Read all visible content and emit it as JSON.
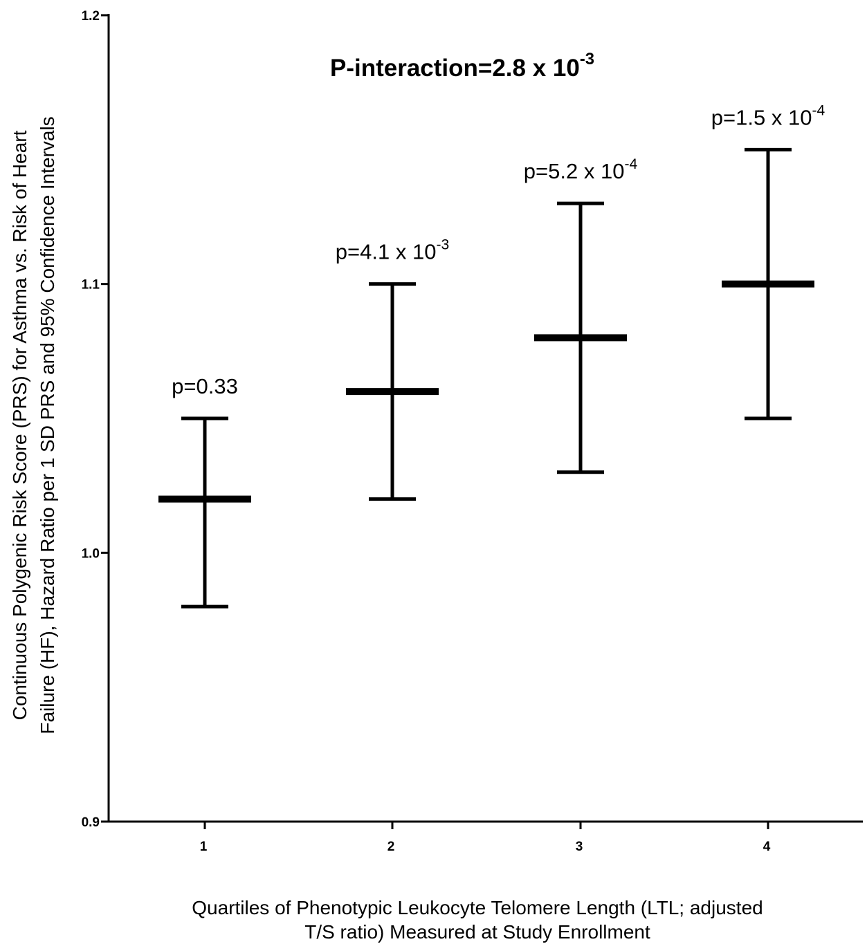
{
  "chart_data": {
    "type": "errorbar",
    "title": {
      "base": "P-interaction=2.8 x 10",
      "exponent": "-3"
    },
    "xlabel_lines": [
      "Quartiles of Phenotypic Leukocyte Telomere Length (LTL; adjusted",
      "T/S ratio) Measured at Study Enrollment"
    ],
    "ylabel_lines": [
      "Continuous Polygenic Risk Score (PRS) for Asthma vs. Risk of Heart",
      "Failure (HF), Hazard Ratio per 1 SD PRS and 95% Confidence Intervals"
    ],
    "categories": [
      "1",
      "2",
      "3",
      "4"
    ],
    "yticks": [
      "0.9",
      "1.0",
      "1.1",
      "1.2"
    ],
    "ylim": [
      0.9,
      1.2
    ],
    "grid": false,
    "legend": "none",
    "points": [
      {
        "category": "1",
        "estimate": 1.02,
        "lower": 0.98,
        "upper": 1.05,
        "label": {
          "base": "p=0.33",
          "exponent": ""
        }
      },
      {
        "category": "2",
        "estimate": 1.06,
        "lower": 1.02,
        "upper": 1.1,
        "label": {
          "base": "p=4.1 x 10",
          "exponent": "-3"
        }
      },
      {
        "category": "3",
        "estimate": 1.08,
        "lower": 1.03,
        "upper": 1.13,
        "label": {
          "base": "p=5.2 x 10",
          "exponent": "-4"
        }
      },
      {
        "category": "4",
        "estimate": 1.1,
        "lower": 1.05,
        "upper": 1.15,
        "label": {
          "base": "p=1.5 x 10",
          "exponent": "-4"
        }
      }
    ],
    "colors": {
      "marks": "#000000",
      "background": "#ffffff"
    }
  }
}
